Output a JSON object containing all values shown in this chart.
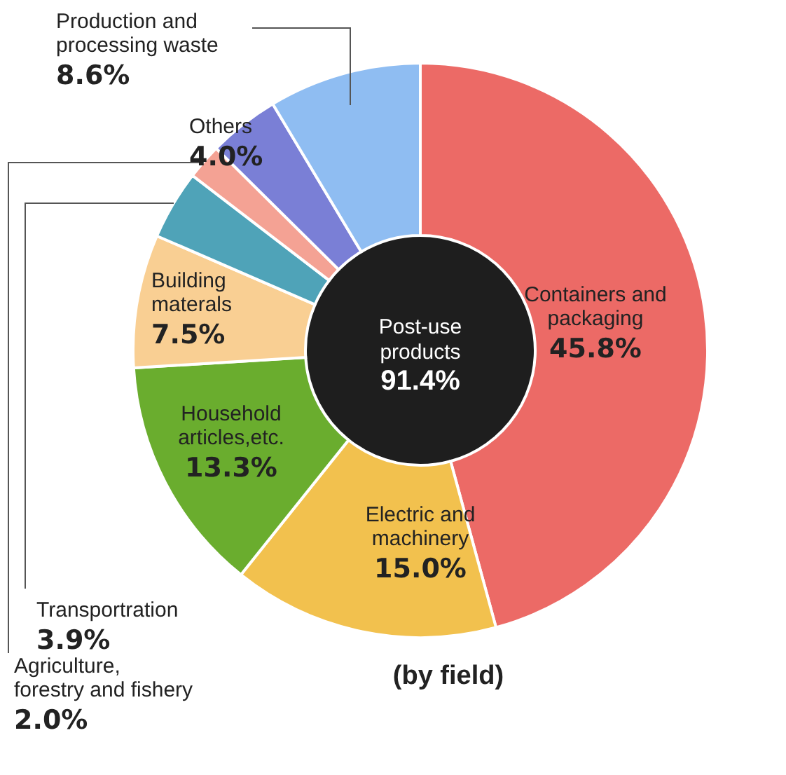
{
  "chart_data": {
    "type": "donut",
    "title": "(by field)",
    "categories": [
      "Containers and packaging",
      "Electric and machinery",
      "Household articles,etc.",
      "Building materals",
      "Transportration",
      "Agriculture, forestry and fishery",
      "Others",
      "Production and processing waste"
    ],
    "values": [
      45.8,
      15.0,
      13.3,
      7.5,
      3.9,
      2.0,
      4.0,
      8.6
    ],
    "value_labels": [
      "45.8%",
      "15.0%",
      "13.3%",
      "7.5%",
      "3.9%",
      "2.0%",
      "4.0%",
      "8.6%"
    ],
    "colors": [
      "#ec6a66",
      "#f2c14e",
      "#6aad2e",
      "#f9cf93",
      "#4fa3b8",
      "#f4a294",
      "#7a7fd6",
      "#8fbdf2"
    ],
    "annotations": [
      "Post-use products",
      "91.4%"
    ]
  }
}
